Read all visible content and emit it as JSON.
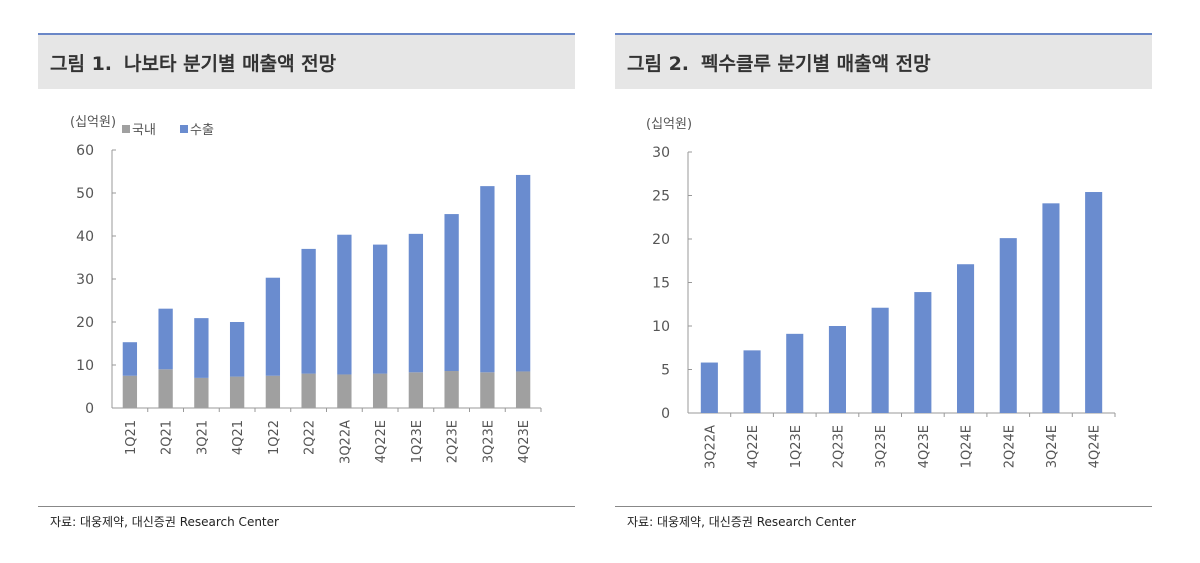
{
  "colors": {
    "domestic": "#a0a0a0",
    "export": "#6a8ccf",
    "accent": "#6a87c7"
  },
  "chart_data": [
    {
      "type": "bar",
      "stacked": true,
      "figure_label": "그림 1.",
      "title": "나보타 분기별 매출액 전망",
      "unit": "(십억원)",
      "legend_position": "top-left",
      "categories": [
        "1Q21",
        "2Q21",
        "3Q21",
        "4Q21",
        "1Q22",
        "2Q22",
        "3Q22A",
        "4Q22E",
        "1Q23E",
        "2Q23E",
        "3Q23E",
        "4Q23E"
      ],
      "series": [
        {
          "name": "국내",
          "values": [
            7.5,
            9.0,
            7.0,
            7.3,
            7.5,
            8.0,
            7.8,
            8.0,
            8.3,
            8.6,
            8.3,
            8.5
          ]
        },
        {
          "name": "수출",
          "values": [
            7.8,
            14.1,
            13.9,
            12.7,
            22.8,
            29.0,
            32.5,
            30.0,
            32.2,
            36.5,
            43.3,
            45.7
          ]
        }
      ],
      "ylim": [
        0,
        60
      ],
      "yticks": [
        0,
        10,
        20,
        30,
        40,
        50,
        60
      ],
      "grid": false,
      "source": "자료: 대웅제약, 대신증권 Research Center"
    },
    {
      "type": "bar",
      "figure_label": "그림 2.",
      "title": "펙수클루 분기별 매출액 전망",
      "unit": "(십억원)",
      "categories": [
        "3Q22A",
        "4Q22E",
        "1Q23E",
        "2Q23E",
        "3Q23E",
        "4Q23E",
        "1Q24E",
        "2Q24E",
        "3Q24E",
        "4Q24E"
      ],
      "values": [
        5.8,
        7.2,
        9.1,
        10.0,
        12.1,
        13.9,
        17.1,
        20.1,
        24.1,
        25.4
      ],
      "ylim": [
        0,
        30
      ],
      "yticks": [
        0,
        5,
        10,
        15,
        20,
        25,
        30
      ],
      "grid": false,
      "source": "자료: 대웅제약, 대신증권 Research Center"
    }
  ]
}
